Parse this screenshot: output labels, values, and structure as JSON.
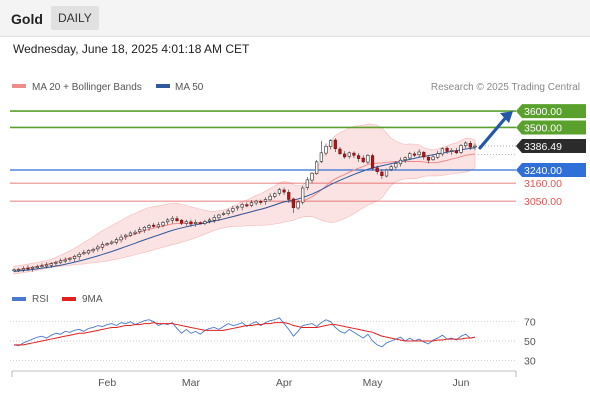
{
  "header": {
    "title": "Gold",
    "timeframe": "DAILY"
  },
  "timestamp": "Wednesday, June 18, 2025 4:01:18 AM CET",
  "legend": {
    "items": [
      {
        "label": "MA 20 + Bollinger Bands",
        "color": "#f08c8c"
      },
      {
        "label": "MA 50",
        "color": "#2f5a9e"
      }
    ],
    "credit": "Research © 2025 Trading Central"
  },
  "rsi_legend": {
    "items": [
      {
        "label": "RSI",
        "color": "#4a78d0"
      },
      {
        "label": "9MA",
        "color": "#e02020"
      }
    ]
  },
  "colors": {
    "resistance": "#5aa02c",
    "support": "#2f6fd8",
    "minor_level": "#e05555",
    "current_price": "#2b2b2b",
    "arrow": "#2457a8"
  },
  "chart_data": [
    {
      "type": "candlestick",
      "ylim": [
        2580,
        3680
      ],
      "x_ticks": [
        "Feb",
        "Mar",
        "Apr",
        "May",
        "Jun"
      ],
      "levels": [
        {
          "value": 3600,
          "label": "3600.00",
          "kind": "resistance"
        },
        {
          "value": 3500,
          "label": "3500.00",
          "kind": "resistance"
        },
        {
          "value": 3386.49,
          "label": "3386.49",
          "kind": "current"
        },
        {
          "value": 3240,
          "label": "3240.00",
          "kind": "support"
        },
        {
          "value": 3160,
          "label": "3160.00",
          "kind": "minor"
        },
        {
          "value": 3050,
          "label": "3050.00",
          "kind": "minor"
        }
      ],
      "arrow": {
        "from": 3375,
        "to": 3600
      },
      "closes": [
        2630,
        2632,
        2638,
        2640,
        2645,
        2650,
        2655,
        2660,
        2668,
        2675,
        2685,
        2690,
        2700,
        2712,
        2725,
        2735,
        2748,
        2755,
        2770,
        2785,
        2790,
        2800,
        2815,
        2830,
        2842,
        2855,
        2860,
        2875,
        2890,
        2900,
        2895,
        2905,
        2920,
        2935,
        2945,
        2930,
        2915,
        2925,
        2910,
        2920,
        2915,
        2925,
        2935,
        2950,
        2965,
        2975,
        2990,
        3005,
        3015,
        3030,
        3020,
        3040,
        3050,
        3045,
        3060,
        3080,
        3095,
        3120,
        3105,
        3060,
        3010,
        3045,
        3130,
        3180,
        3220,
        3290,
        3345,
        3385,
        3420,
        3370,
        3340,
        3320,
        3345,
        3330,
        3310,
        3290,
        3330,
        3250,
        3230,
        3205,
        3240,
        3260,
        3280,
        3300,
        3315,
        3340,
        3330,
        3350,
        3320,
        3300,
        3320,
        3340,
        3370,
        3355,
        3360,
        3345,
        3390,
        3405,
        3380,
        3386
      ],
      "ma20": [
        2628,
        2632,
        2636,
        2641,
        2646,
        2651,
        2657,
        2663,
        2670,
        2677,
        2685,
        2693,
        2702,
        2711,
        2721,
        2731,
        2742,
        2752,
        2763,
        2774,
        2784,
        2795,
        2806,
        2817,
        2828,
        2839,
        2849,
        2859,
        2869,
        2878,
        2884,
        2890,
        2897,
        2904,
        2911,
        2913,
        2913,
        2915,
        2915,
        2917,
        2918,
        2921,
        2924,
        2929,
        2935,
        2941,
        2948,
        2956,
        2964,
        2972,
        2978,
        2986,
        2993,
        2999,
        3007,
        3016,
        3026,
        3038,
        3046,
        3046,
        3042,
        3043,
        3051,
        3062,
        3077,
        3096,
        3118,
        3142,
        3168,
        3186,
        3200,
        3212,
        3227,
        3240,
        3251,
        3261,
        3274,
        3279,
        3282,
        3283,
        3287,
        3290,
        3292,
        3292,
        3291,
        3293,
        3292,
        3293,
        3289,
        3286,
        3284,
        3286,
        3293,
        3299,
        3307,
        3313,
        3322,
        3330,
        3335,
        3338
      ],
      "ma50": [
        2620,
        2623,
        2626,
        2629,
        2632,
        2636,
        2640,
        2644,
        2648,
        2653,
        2658,
        2664,
        2670,
        2677,
        2684,
        2691,
        2699,
        2707,
        2715,
        2724,
        2733,
        2742,
        2752,
        2762,
        2772,
        2782,
        2792,
        2803,
        2813,
        2823,
        2833,
        2842,
        2852,
        2862,
        2871,
        2879,
        2886,
        2893,
        2899,
        2905,
        2910,
        2916,
        2922,
        2928,
        2934,
        2941,
        2948,
        2955,
        2962,
        2970,
        2977,
        2985,
        2993,
        3000,
        3008,
        3017,
        3026,
        3036,
        3045,
        3051,
        3056,
        3063,
        3072,
        3082,
        3093,
        3106,
        3120,
        3135,
        3151,
        3164,
        3177,
        3189,
        3201,
        3213,
        3224,
        3234,
        3245,
        3253,
        3260,
        3266,
        3272,
        3279,
        3285,
        3292,
        3298,
        3305,
        3311,
        3318,
        3323,
        3328,
        3333,
        3338,
        3344,
        3349,
        3354,
        3358,
        3363,
        3368,
        3372,
        3376
      ]
    },
    {
      "type": "line",
      "title": "RSI",
      "ylim": [
        20,
        80
      ],
      "y_ticks": [
        70,
        50,
        30
      ],
      "series": [
        {
          "name": "RSI",
          "values": [
            46,
            45,
            48,
            50,
            52,
            54,
            55,
            53,
            56,
            58,
            57,
            60,
            59,
            61,
            62,
            60,
            63,
            64,
            66,
            65,
            67,
            68,
            66,
            69,
            68,
            70,
            67,
            69,
            71,
            72,
            70,
            66,
            68,
            67,
            69,
            63,
            58,
            62,
            58,
            60,
            57,
            61,
            63,
            64,
            62,
            65,
            68,
            66,
            67,
            69,
            65,
            68,
            70,
            66,
            69,
            71,
            72,
            74,
            68,
            62,
            55,
            60,
            66,
            67,
            68,
            65,
            69,
            72,
            70,
            64,
            60,
            58,
            62,
            59,
            56,
            53,
            57,
            50,
            46,
            44,
            48,
            50,
            52,
            54,
            50,
            53,
            50,
            52,
            49,
            47,
            51,
            53,
            56,
            52,
            53,
            51,
            55,
            57,
            53,
            54
          ]
        },
        {
          "name": "9MA",
          "values": [
            46,
            46,
            46,
            47,
            48,
            49,
            50,
            51,
            52,
            53,
            54,
            55,
            56,
            57,
            58,
            58,
            59,
            60,
            61,
            62,
            63,
            64,
            64,
            65,
            66,
            66,
            67,
            67,
            68,
            68,
            69,
            68,
            68,
            68,
            68,
            67,
            66,
            65,
            64,
            63,
            62,
            61,
            61,
            61,
            61,
            61,
            62,
            63,
            64,
            65,
            66,
            66,
            67,
            67,
            68,
            68,
            69,
            69,
            69,
            68,
            66,
            65,
            64,
            64,
            64,
            64,
            65,
            66,
            67,
            67,
            66,
            65,
            64,
            63,
            62,
            61,
            60,
            59,
            57,
            55,
            54,
            53,
            52,
            51,
            50,
            50,
            50,
            50,
            50,
            50,
            50,
            51,
            51,
            52,
            52,
            52,
            52,
            53,
            53,
            54
          ]
        }
      ]
    }
  ]
}
